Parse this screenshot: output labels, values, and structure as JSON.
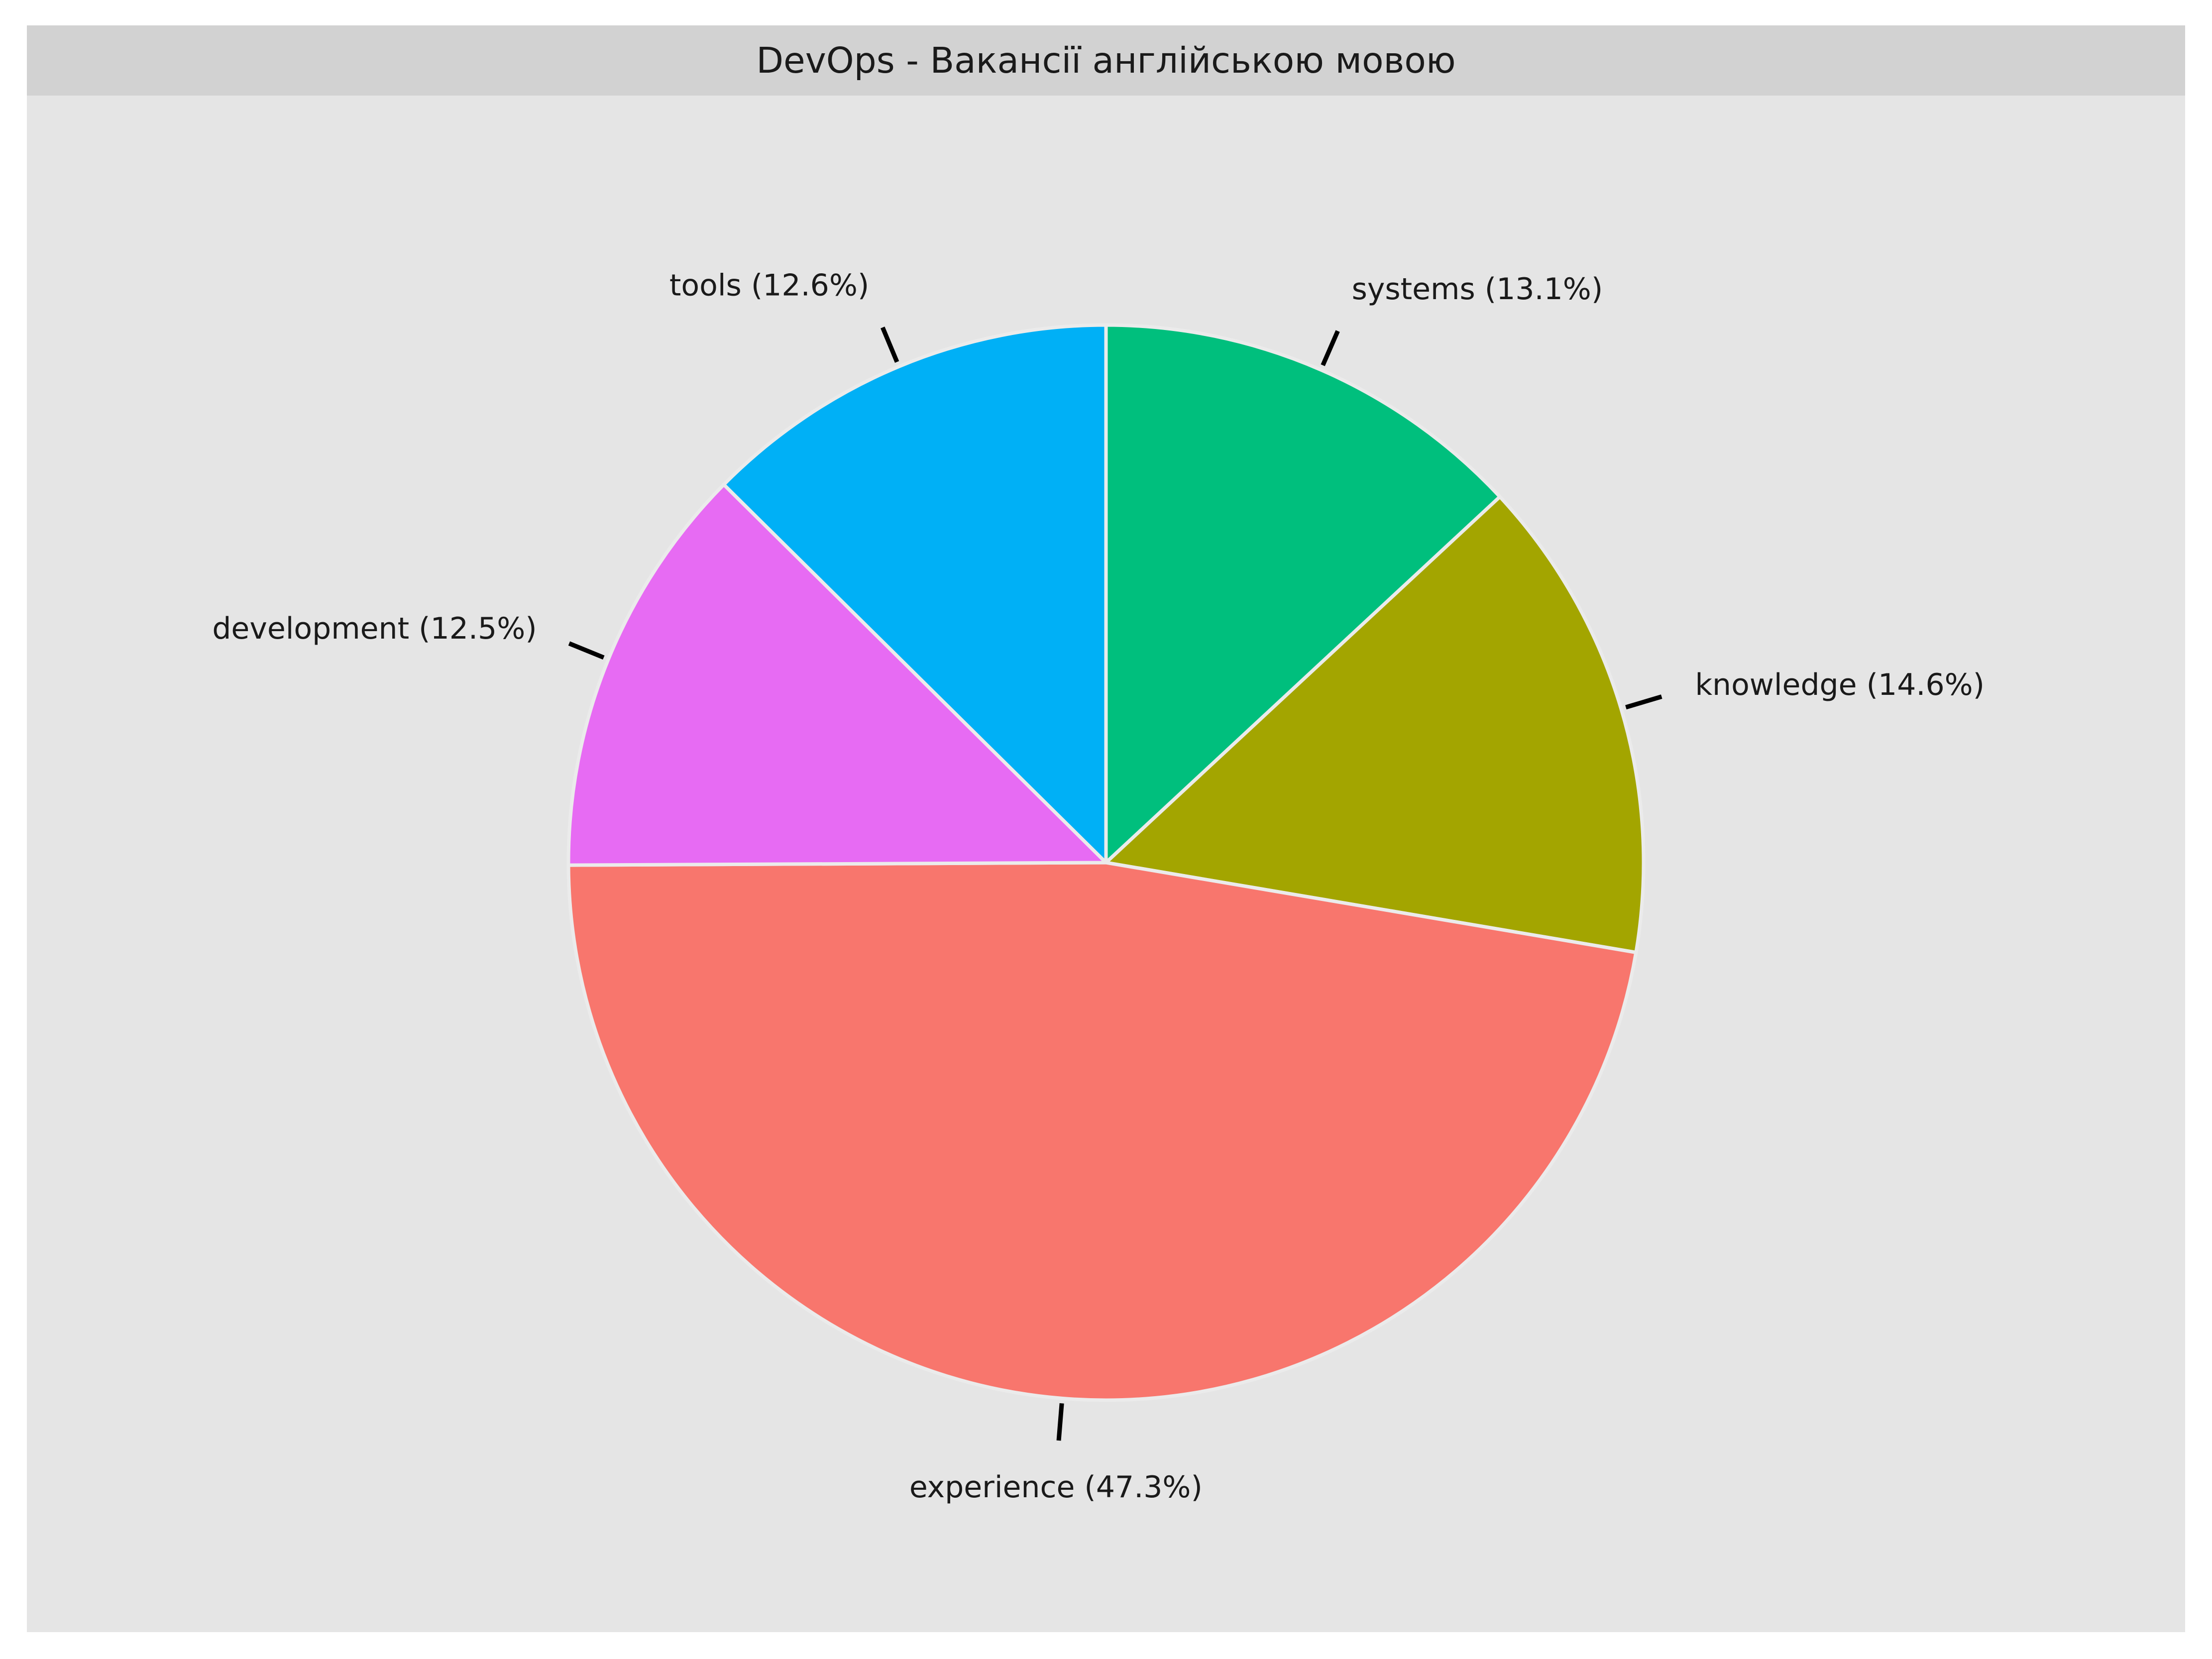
{
  "chart_data": {
    "type": "pie",
    "title": "DevOps - Вакансії англійською мовою",
    "slices": [
      {
        "label": "systems",
        "value": 13.1,
        "display": "systems (13.1%)",
        "color": "#00BF7D"
      },
      {
        "label": "knowledge",
        "value": 14.6,
        "display": "knowledge (14.6%)",
        "color": "#A3A500"
      },
      {
        "label": "experience",
        "value": 47.3,
        "display": "experience (47.3%)",
        "color": "#F8766D"
      },
      {
        "label": "development",
        "value": 12.5,
        "display": "development (12.5%)",
        "color": "#E76BF3"
      },
      {
        "label": "tools",
        "value": 12.6,
        "display": "tools (12.6%)",
        "color": "#00B0F6"
      }
    ],
    "start": "12 o'clock",
    "direction": "clockwise",
    "legend": "none",
    "colors": {
      "panel_background": "#E5E5E5",
      "title_strip": "#D2D2D2",
      "slice_border": "#EBEBEB",
      "leader_line": "#000000"
    }
  }
}
